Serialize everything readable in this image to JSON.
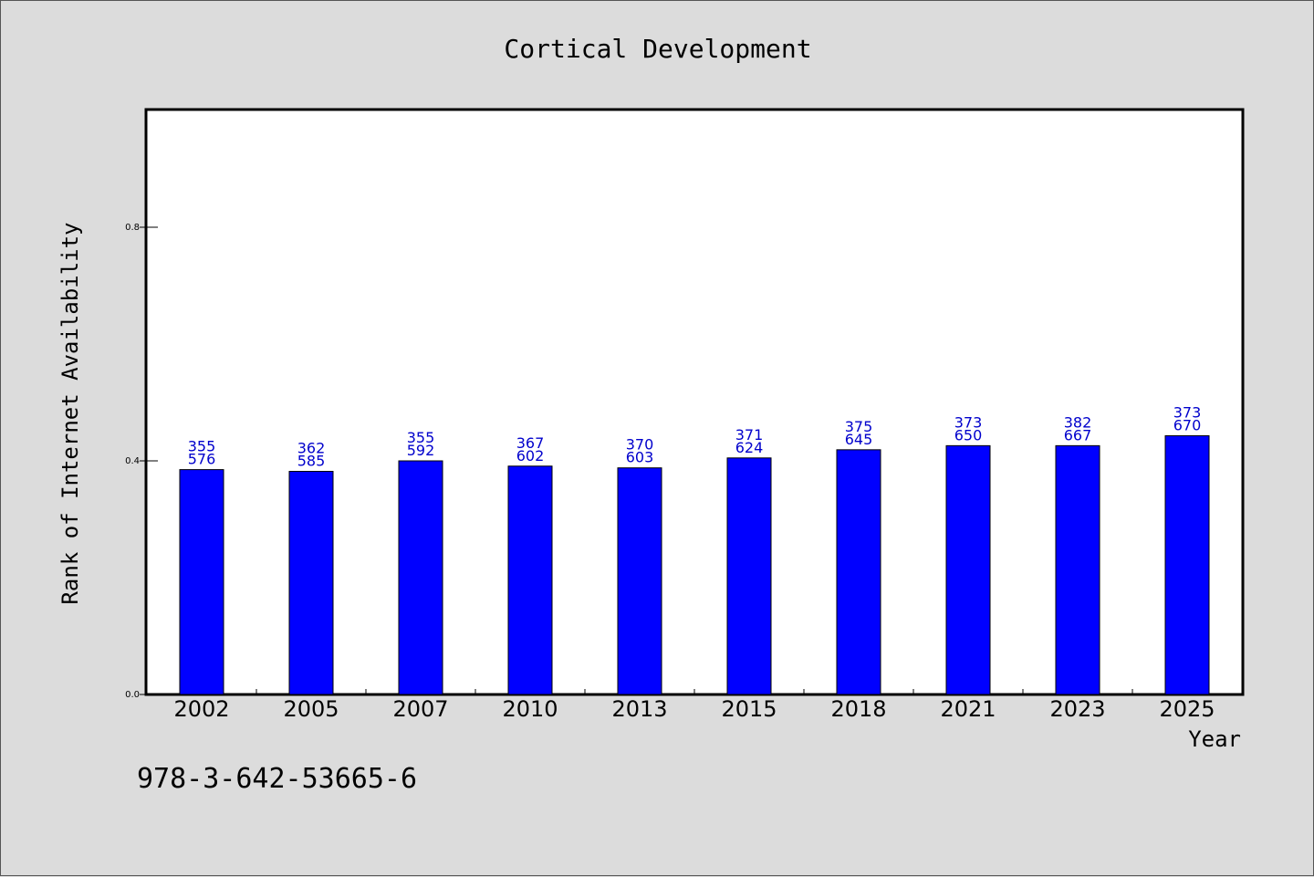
{
  "chart_data": {
    "type": "bar",
    "title": "Cortical Development",
    "xlabel": "Year",
    "ylabel": "Rank of Internet Availability",
    "categories": [
      "2002",
      "2005",
      "2007",
      "2010",
      "2013",
      "2015",
      "2018",
      "2021",
      "2023",
      "2025"
    ],
    "values": [
      0.385,
      0.382,
      0.4,
      0.391,
      0.388,
      0.405,
      0.419,
      0.426,
      0.426,
      0.443
    ],
    "data_labels_top": [
      "355",
      "362",
      "355",
      "367",
      "370",
      "371",
      "375",
      "373",
      "382",
      "373"
    ],
    "data_labels_bottom": [
      "576",
      "585",
      "592",
      "602",
      "603",
      "624",
      "645",
      "650",
      "667",
      "670"
    ],
    "yticks": [
      0.0,
      0.4,
      0.8
    ],
    "ytick_labels": [
      "0.0",
      "0.4",
      "0.8"
    ],
    "ylim": [
      0,
      1.0
    ],
    "grid": false,
    "legend": "none",
    "bar_color": "#0000ff",
    "label_color": "#0000cc"
  },
  "footnote": "978-3-642-53665-6"
}
